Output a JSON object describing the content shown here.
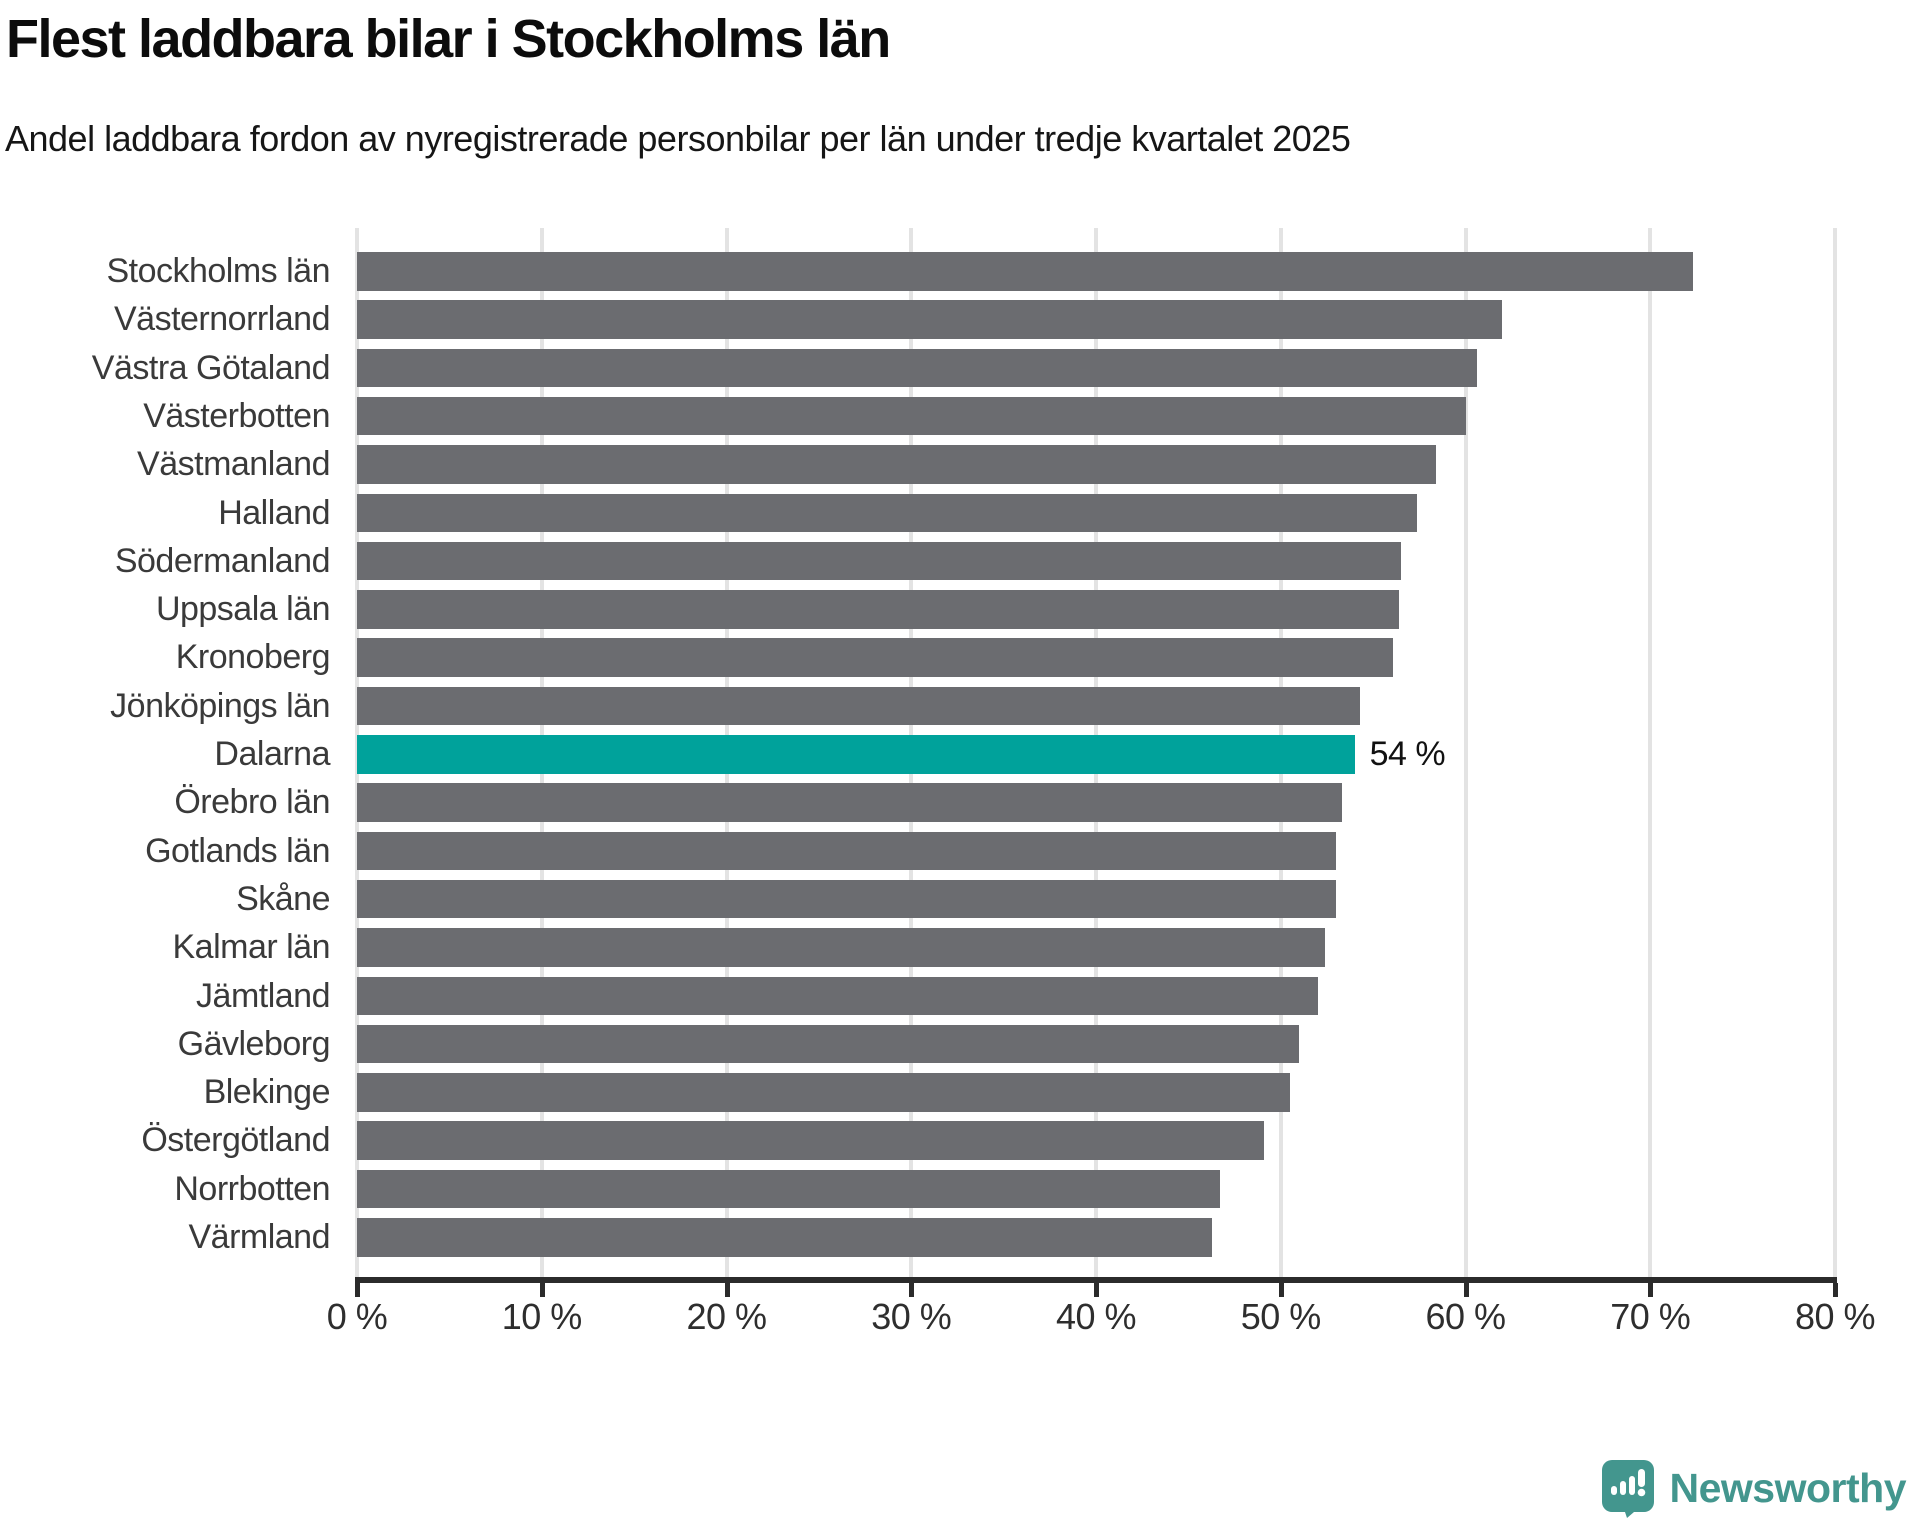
{
  "title": "Flest laddbara bilar i Stockholms län",
  "subtitle": "Andel laddbara fordon av nyregistrerade personbilar per län under tredje kvartalet 2025",
  "branding": {
    "name": "Newsworthy",
    "icon": "newsworthy-speech-bubble-bar-chart-icon"
  },
  "colors": {
    "bar": "#6b6c70",
    "highlight": "#00a29b",
    "axis": "#2b2b2b",
    "gridline": "#e3e3e3",
    "brand": "#43968e",
    "background": "#ffffff"
  },
  "chart_data": {
    "type": "bar",
    "orientation": "horizontal",
    "title": "Flest laddbara bilar i Stockholms län",
    "subtitle": "Andel laddbara fordon av nyregistrerade personbilar per län under tredje kvartalet 2025",
    "unit": "%",
    "xlim": [
      0,
      80
    ],
    "grid": "vertical",
    "x_ticks": [
      "0 %",
      "10 %",
      "20 %",
      "30 %",
      "40 %",
      "50 %",
      "60 %",
      "70 %",
      "80 %"
    ],
    "categories": [
      "Stockholms län",
      "Västernorrland",
      "Västra Götaland",
      "Västerbotten",
      "Västmanland",
      "Halland",
      "Södermanland",
      "Uppsala län",
      "Kronoberg",
      "Jönköpings län",
      "Dalarna",
      "Örebro län",
      "Gotlands län",
      "Skåne",
      "Kalmar län",
      "Jämtland",
      "Gävleborg",
      "Blekinge",
      "Östergötland",
      "Norrbotten",
      "Värmland"
    ],
    "values": [
      72.3,
      62.0,
      60.6,
      60.0,
      58.4,
      57.4,
      56.5,
      56.4,
      56.1,
      54.3,
      54.0,
      53.3,
      53.0,
      53.0,
      52.4,
      52.0,
      51.0,
      50.5,
      49.1,
      46.7,
      46.3
    ],
    "highlight_index": 10,
    "highlight_category": "Dalarna",
    "highlight_label": "54 %"
  }
}
